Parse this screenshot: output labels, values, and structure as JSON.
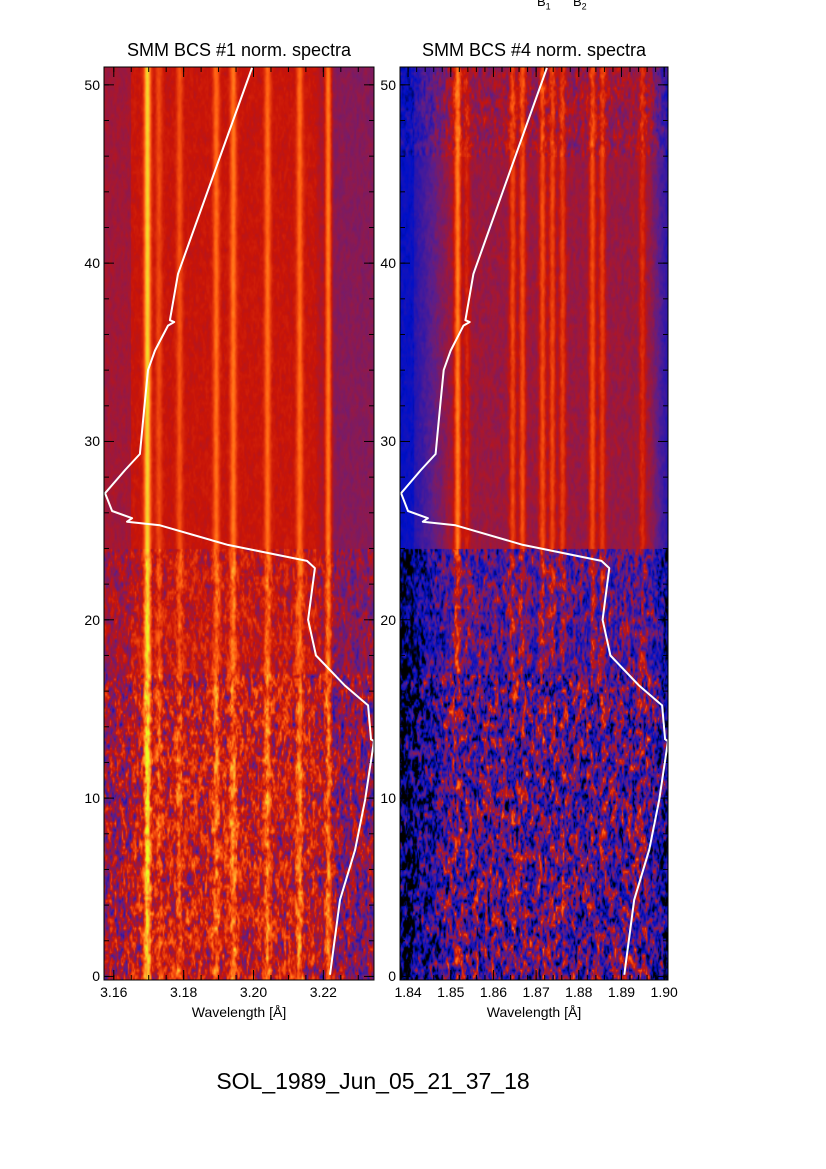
{
  "header": {
    "labels": [
      {
        "base": "B",
        "sub": "1"
      },
      {
        "base": "B",
        "sub": "2"
      }
    ]
  },
  "figure_label": "SOL_1989_Jun_05_21_37_18",
  "chart_data": [
    {
      "type": "heatmap",
      "title": "SMM BCS #1 norm. spectra",
      "xlabel": "Wavelength [Å]",
      "ylabel": "",
      "xlim": [
        3.1572,
        3.2345
      ],
      "ylim": [
        -0.2,
        51.0
      ],
      "xticks": [
        "3.16",
        "3.18",
        "3.20",
        "3.22"
      ],
      "xtick_values": [
        3.16,
        3.18,
        3.2,
        3.22
      ],
      "yticks": [
        "0",
        "10",
        "20",
        "30",
        "40",
        "50"
      ],
      "ytick_values": [
        0,
        10,
        20,
        30,
        40,
        50
      ],
      "colormap": [
        "#000000",
        "#0010c8",
        "#5a1e8c",
        "#c81408",
        "#ff5a10",
        "#ffb030",
        "#e8ff20"
      ],
      "emission_lines": [
        {
          "wavelength": 3.1695,
          "strength": 0.42
        },
        {
          "wavelength": 3.1728,
          "strength": 0.12
        },
        {
          "wavelength": 3.1787,
          "strength": 0.14
        },
        {
          "wavelength": 3.1892,
          "strength": 0.2
        },
        {
          "wavelength": 3.1941,
          "strength": 0.22
        },
        {
          "wavelength": 3.2039,
          "strength": 0.2
        },
        {
          "wavelength": 3.2131,
          "strength": 0.2
        },
        {
          "wavelength": 3.2213,
          "strength": 0.32
        }
      ],
      "grid": false
    },
    {
      "type": "heatmap",
      "title": "SMM BCS #4 norm. spectra",
      "xlabel": "Wavelength [Å]",
      "ylabel": "",
      "xlim": [
        1.8381,
        1.9009
      ],
      "ylim": [
        -0.2,
        51.0
      ],
      "xticks": [
        "1.84",
        "1.85",
        "1.86",
        "1.87",
        "1.88",
        "1.89",
        "1.90"
      ],
      "xtick_values": [
        1.84,
        1.85,
        1.86,
        1.87,
        1.88,
        1.89,
        1.9
      ],
      "yticks": [
        "0",
        "10",
        "20",
        "30",
        "40",
        "50"
      ],
      "ytick_values": [
        0,
        10,
        20,
        30,
        40,
        50
      ],
      "colormap": [
        "#000000",
        "#0010c8",
        "#5a1e8c",
        "#c81408",
        "#ff5a10",
        "#ffb030",
        "#e8ff20"
      ],
      "emission_lines": [
        {
          "wavelength": 1.8515,
          "strength": 0.3
        },
        {
          "wavelength": 1.8537,
          "strength": 0.1
        },
        {
          "wavelength": 1.8644,
          "strength": 0.18
        },
        {
          "wavelength": 1.8667,
          "strength": 0.2
        },
        {
          "wavelength": 1.8714,
          "strength": 0.2
        },
        {
          "wavelength": 1.8737,
          "strength": 0.18
        },
        {
          "wavelength": 1.8761,
          "strength": 0.16
        },
        {
          "wavelength": 1.8831,
          "strength": 0.2
        },
        {
          "wavelength": 1.8854,
          "strength": 0.16
        },
        {
          "wavelength": 1.8948,
          "strength": 0.12
        }
      ],
      "grid": false
    }
  ],
  "light_curve": {
    "color": "#ffffff",
    "normalized_value_vs_y": [
      [
        0.837,
        0.1
      ],
      [
        0.874,
        4.3
      ],
      [
        0.93,
        7.1
      ],
      [
        0.967,
        9.9
      ],
      [
        1.0,
        13.2
      ],
      [
        0.989,
        13.3
      ],
      [
        0.978,
        15.2
      ],
      [
        0.893,
        16.3
      ],
      [
        0.785,
        18.0
      ],
      [
        0.756,
        20.0
      ],
      [
        0.781,
        22.9
      ],
      [
        0.752,
        23.3
      ],
      [
        0.459,
        24.2
      ],
      [
        0.207,
        25.3
      ],
      [
        0.085,
        25.5
      ],
      [
        0.104,
        25.7
      ],
      [
        0.03,
        26.1
      ],
      [
        0.004,
        27.1
      ],
      [
        0.078,
        28.4
      ],
      [
        0.133,
        29.3
      ],
      [
        0.141,
        30.6
      ],
      [
        0.152,
        32.3
      ],
      [
        0.163,
        34.0
      ],
      [
        0.189,
        35.1
      ],
      [
        0.237,
        36.5
      ],
      [
        0.26,
        36.7
      ],
      [
        0.244,
        36.8
      ],
      [
        0.274,
        39.4
      ],
      [
        0.319,
        41.3
      ],
      [
        0.548,
        50.95
      ]
    ]
  }
}
